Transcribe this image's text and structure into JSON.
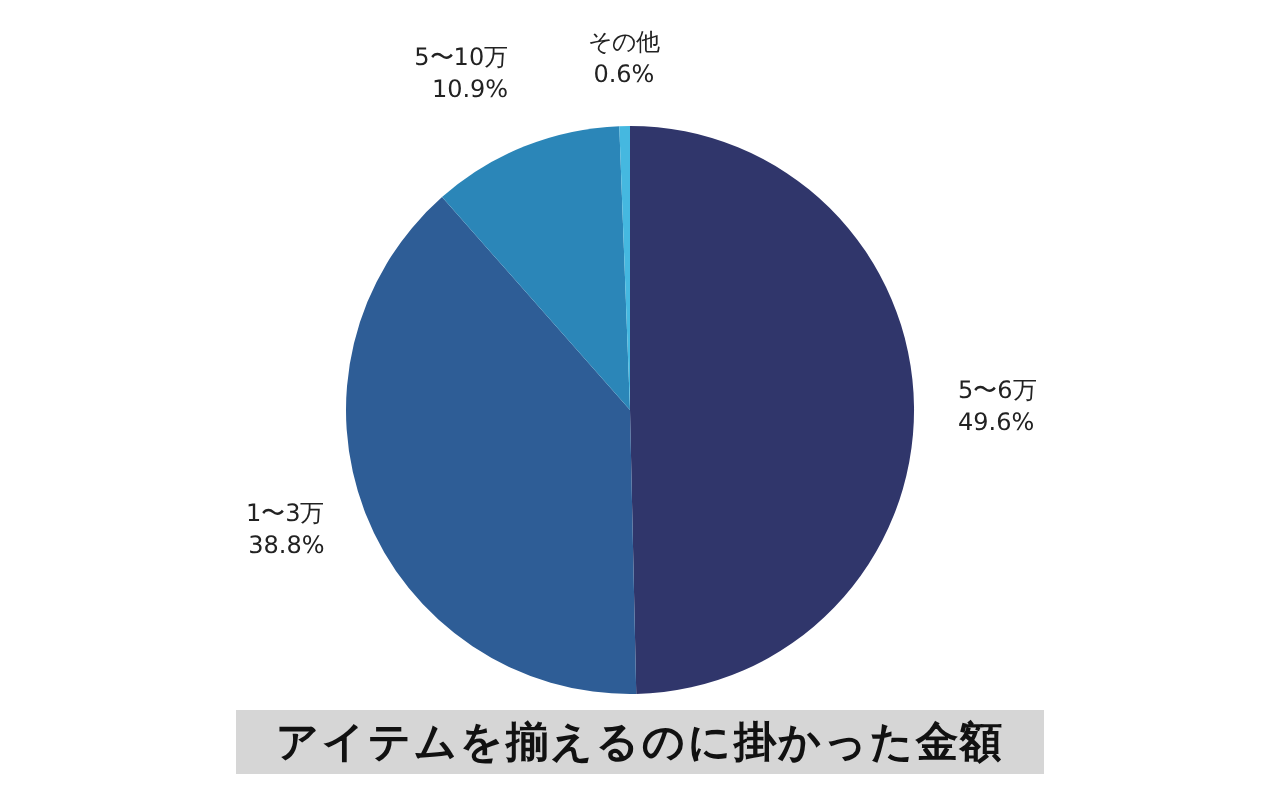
{
  "chart_data": {
    "type": "pie",
    "title": "アイテムを揃えるのに掛かった金額",
    "categories": [
      "5〜6万",
      "1〜3万",
      "5〜10万",
      "その他"
    ],
    "values": [
      49.6,
      38.8,
      10.9,
      0.6
    ],
    "value_labels": [
      "49.6%",
      "38.8%",
      "10.9%",
      "0.6%"
    ],
    "colors": [
      "#30366b",
      "#2e5d96",
      "#2b86b8",
      "#45b8e0"
    ]
  }
}
